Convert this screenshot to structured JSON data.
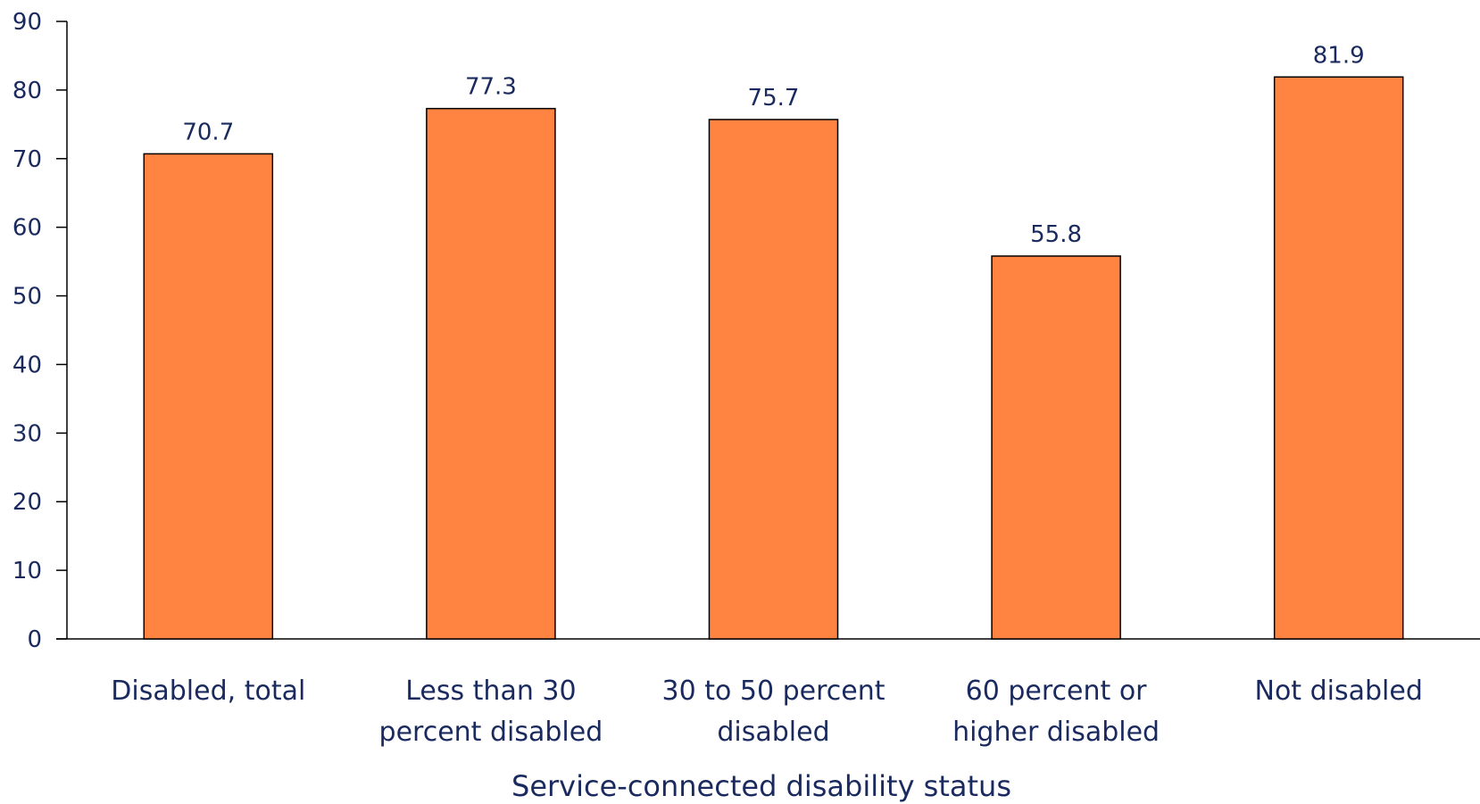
{
  "chart_data": {
    "type": "bar",
    "categories": [
      [
        "Disabled, total"
      ],
      [
        "Less than 30",
        "percent disabled"
      ],
      [
        "30 to 50 percent",
        "disabled"
      ],
      [
        "60 percent or",
        "higher disabled"
      ],
      [
        "Not disabled"
      ]
    ],
    "values": [
      70.7,
      77.3,
      75.7,
      55.8,
      81.9
    ],
    "value_labels": [
      "70.7",
      "77.3",
      "75.7",
      "55.8",
      "81.9"
    ],
    "title": "",
    "xlabel": "Service-connected disability status",
    "ylabel": "",
    "ylim": [
      0,
      90
    ],
    "yticks": [
      0,
      10,
      20,
      30,
      40,
      50,
      60,
      70,
      80,
      90
    ],
    "grid": false,
    "legend": "none",
    "colors": {
      "bar_fill": "#ff8442",
      "bar_stroke": "#000000",
      "axis": "#000000",
      "text": "#1a2a5e"
    }
  }
}
